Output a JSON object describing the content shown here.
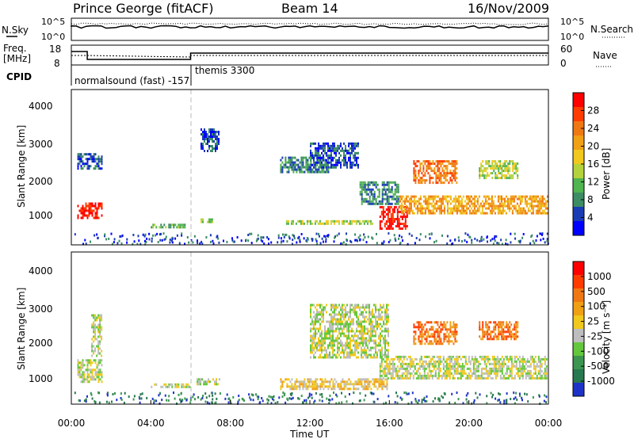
{
  "header": {
    "station": "Prince George (fitACF)",
    "beam": "Beam 14",
    "date": "16/Nov/2009"
  },
  "top_panel": {
    "left_label": "N.Sky",
    "right_label": "N.Search",
    "left_ticks": [
      "10^5",
      "10^0"
    ],
    "right_ticks": [
      "10^5",
      "10^0"
    ]
  },
  "freq_panel": {
    "left_label_line1": "Freq.",
    "left_label_line2": "[MHz]",
    "right_label": "Nave",
    "left_ticks": [
      "18",
      "8"
    ],
    "right_ticks": [
      "60",
      "0"
    ]
  },
  "cpid": {
    "label": "CPID",
    "entries": [
      "normalsound (fast) -157",
      "themis 3300"
    ]
  },
  "power_panel": {
    "ylabel": "Slant Range [km]",
    "yticks": [
      "4000",
      "3000",
      "2000",
      "1000"
    ],
    "colorbar_label": "Power [dB]",
    "colorbar_ticks": [
      "28",
      "24",
      "20",
      "16",
      "12",
      "8",
      "4"
    ],
    "colors": [
      "#0000ff",
      "#1a3cb4",
      "#3c8c64",
      "#50b450",
      "#b4d23c",
      "#f0c81e",
      "#f0a014",
      "#f07814",
      "#ff3c00",
      "#ff0000"
    ]
  },
  "velocity_panel": {
    "ylabel": "Slant Range [km]",
    "yticks": [
      "4000",
      "3000",
      "2000",
      "1000"
    ],
    "colorbar_label": "Velocity [m s⁻¹]",
    "colorbar_ticks": [
      "1000",
      "500",
      "100",
      "25",
      "-25",
      "-100",
      "-500",
      "-1000"
    ],
    "colors": [
      "#1e32c8",
      "#287850",
      "#3c9650",
      "#64c83c",
      "#bebebe",
      "#f0c81e",
      "#f0a014",
      "#f07814",
      "#ff3c00",
      "#ff0000"
    ]
  },
  "xaxis": {
    "label": "Time UT",
    "ticks": [
      "00:00",
      "04:00",
      "08:00",
      "12:00",
      "16:00",
      "20:00",
      "00:00"
    ]
  },
  "chart_data": {
    "type": "heatmap",
    "title": "Prince George (fitACF) Beam 14 16/Nov/2009",
    "xlabel": "Time UT",
    "ylabel": "Slant Range [km]",
    "xlim_hours": [
      0,
      24
    ],
    "ylim_km": [
      200,
      4600
    ],
    "colorbar_power_db": [
      0,
      30
    ],
    "colorbar_velocity_ms": [
      -1000,
      1000
    ],
    "cpid_change_hour": 6,
    "power_regions": [
      {
        "t0": 0.3,
        "t1": 1.6,
        "r0": 900,
        "r1": 1400,
        "level": 9
      },
      {
        "t0": 0.3,
        "t1": 1.6,
        "r0": 2300,
        "r1": 2800,
        "level": 1
      },
      {
        "t0": 4.0,
        "t1": 5.8,
        "r0": 650,
        "r1": 800,
        "level": 3
      },
      {
        "t0": 6.5,
        "t1": 7.2,
        "r0": 800,
        "r1": 950,
        "level": 4
      },
      {
        "t0": 6.5,
        "t1": 7.5,
        "r0": 2800,
        "r1": 3500,
        "level": 1
      },
      {
        "t0": 10.8,
        "t1": 15.2,
        "r0": 700,
        "r1": 900,
        "level": 4
      },
      {
        "t0": 10.5,
        "t1": 13.0,
        "r0": 2200,
        "r1": 2700,
        "level": 2
      },
      {
        "t0": 12.0,
        "t1": 14.5,
        "r0": 2300,
        "r1": 3100,
        "level": 1
      },
      {
        "t0": 14.5,
        "t1": 16.5,
        "r0": 1300,
        "r1": 2000,
        "level": 2
      },
      {
        "t0": 15.5,
        "t1": 17.0,
        "r0": 600,
        "r1": 1300,
        "level": 9
      },
      {
        "t0": 16.5,
        "t1": 24.0,
        "r0": 1000,
        "r1": 1600,
        "level": 6
      },
      {
        "t0": 17.2,
        "t1": 19.5,
        "r0": 1900,
        "r1": 2600,
        "level": 7
      },
      {
        "t0": 20.5,
        "t1": 22.5,
        "r0": 2000,
        "r1": 2600,
        "level": 4
      }
    ],
    "velocity_regions": [
      {
        "t0": 0.3,
        "t1": 1.6,
        "r0": 800,
        "r1": 1500,
        "level": 4
      },
      {
        "t0": 1.0,
        "t1": 1.6,
        "r0": 1500,
        "r1": 2800,
        "level": 4
      },
      {
        "t0": 4.0,
        "t1": 6.0,
        "r0": 650,
        "r1": 800,
        "level": 4
      },
      {
        "t0": 6.3,
        "t1": 7.5,
        "r0": 700,
        "r1": 950,
        "level": 4
      },
      {
        "t0": 10.5,
        "t1": 16.0,
        "r0": 600,
        "r1": 950,
        "level": 5
      },
      {
        "t0": 12.0,
        "t1": 16.0,
        "r0": 1500,
        "r1": 3100,
        "level": 4
      },
      {
        "t0": 15.5,
        "t1": 24.0,
        "r0": 900,
        "r1": 1600,
        "level": 4
      },
      {
        "t0": 17.2,
        "t1": 19.5,
        "r0": 1900,
        "r1": 2600,
        "level": 7
      },
      {
        "t0": 20.5,
        "t1": 22.5,
        "r0": 2000,
        "r1": 2600,
        "level": 7
      }
    ]
  }
}
